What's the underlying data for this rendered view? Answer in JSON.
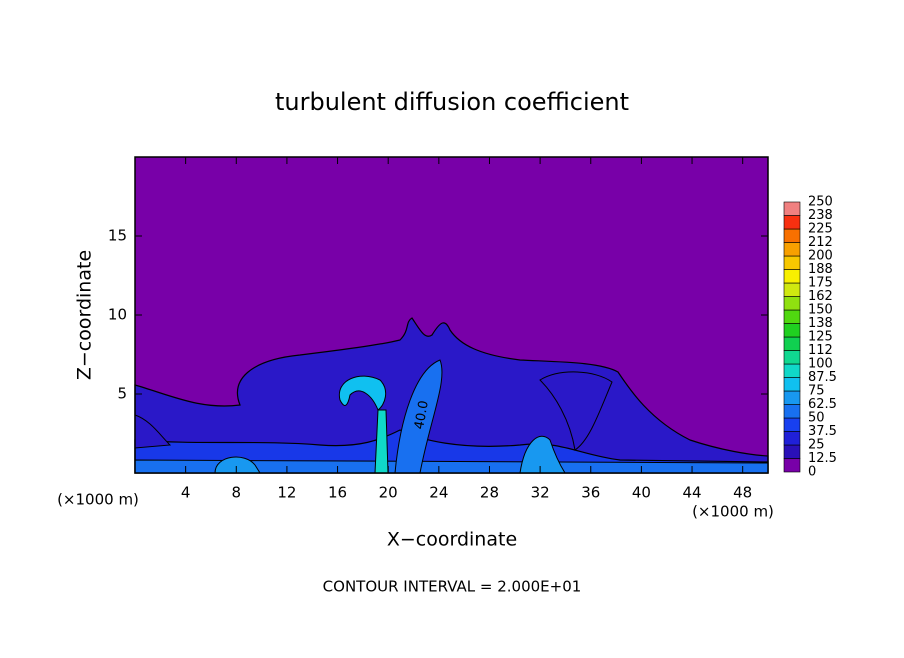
{
  "chart_data": {
    "type": "contour",
    "title": "turbulent diffusion coefficient",
    "xlabel": "X−coordinate",
    "ylabel": "Z−coordinate",
    "x_unit_left": "(×1000 m)",
    "x_unit_right": "(×1000 m)",
    "footer": "CONTOUR INTERVAL = 2.000E+01",
    "contour_label": "40.0",
    "xlim": [
      0,
      50
    ],
    "xticks": [
      4,
      8,
      12,
      16,
      20,
      24,
      28,
      32,
      36,
      40,
      44,
      48
    ],
    "ylim": [
      0,
      20
    ],
    "yticks": [
      5,
      10,
      15
    ],
    "colorbar": {
      "ticks": [
        0,
        12.5,
        25,
        37.5,
        50,
        62.5,
        75,
        87.5,
        100,
        112,
        125,
        138,
        150,
        162,
        175,
        188,
        200,
        212,
        225,
        238,
        250
      ],
      "colors": [
        "#7800a8",
        "#2a10b8",
        "#2020d8",
        "#1840f0",
        "#1870f0",
        "#1898f0",
        "#10c0f0",
        "#10d8c8",
        "#10d890",
        "#10d050",
        "#20d020",
        "#50d810",
        "#90e010",
        "#d0e810",
        "#f8f000",
        "#f8c800",
        "#f8a000",
        "#f87000",
        "#f83010",
        "#f08080"
      ]
    }
  }
}
